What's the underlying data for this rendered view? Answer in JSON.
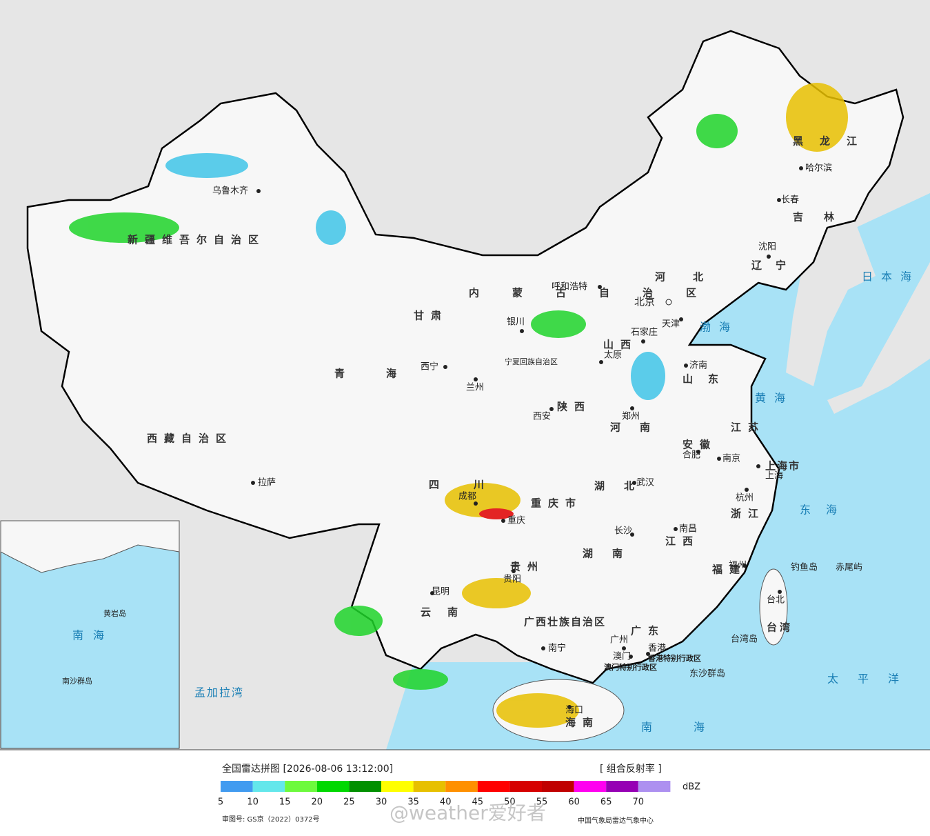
{
  "map": {
    "regions": [
      "新疆维吾尔自治区",
      "西藏自治区",
      "青海",
      "甘肃",
      "内蒙古自治区",
      "黑龙江",
      "吉林",
      "辽宁",
      "河北",
      "山西",
      "山东",
      "河南",
      "陕西",
      "四川",
      "重庆市",
      "贵州",
      "云南",
      "广西壮族自治区",
      "广东",
      "湖南",
      "湖北",
      "江西",
      "安徽",
      "江苏",
      "浙江",
      "福建",
      "台湾",
      "海南",
      "上海市",
      "宁夏回族自治区",
      "香港特别行政区",
      "澳门特别行政区"
    ],
    "cities": [
      "乌鲁木齐",
      "拉萨",
      "西宁",
      "兰州",
      "银川",
      "呼和浩特",
      "北京",
      "天津",
      "石家庄",
      "太原",
      "济南",
      "郑州",
      "西安",
      "成都",
      "重庆",
      "贵阳",
      "昆明",
      "南宁",
      "广州",
      "香港",
      "澳门",
      "长沙",
      "武汉",
      "南昌",
      "合肥",
      "南京",
      "上海",
      "杭州",
      "福州",
      "台北",
      "海口",
      "沈阳",
      "长春",
      "哈尔滨"
    ],
    "seas": [
      "日本海",
      "渤海",
      "黄海",
      "东海",
      "太平洋",
      "南海",
      "孟加拉湾",
      "钓鱼岛",
      "赤尾屿",
      "台湾岛",
      "东沙群岛"
    ],
    "inset": [
      "南海",
      "黄岩岛",
      "南沙群岛"
    ]
  },
  "legend": {
    "title": "全国雷达拼图 [2026-08-06 13:12:00]",
    "product": "[ 组合反射率 ]",
    "unit": "dBZ",
    "colors": [
      "#419bf0",
      "#64e7eb",
      "#6dfa3d",
      "#00d800",
      "#019000",
      "#ffff00",
      "#e7c000",
      "#ff9000",
      "#ff0000",
      "#d60000",
      "#c00000",
      "#ff00f0",
      "#9600b4",
      "#ad90f0"
    ],
    "ticks": [
      5,
      10,
      15,
      20,
      25,
      30,
      35,
      40,
      45,
      50,
      55,
      60,
      65,
      70
    ]
  },
  "footer": {
    "approval": "审图号: GS京（2022）0372号",
    "source": "中国气象局雷达气象中心",
    "watermark": "@weather爱好者"
  }
}
